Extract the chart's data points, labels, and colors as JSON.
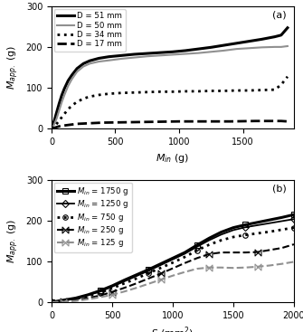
{
  "panel_a": {
    "title": "(a)",
    "xlabel": "$M_{in}$ (g)",
    "ylabel": "$M_{app.}$ (g)",
    "xlim": [
      0,
      1900
    ],
    "ylim": [
      0,
      300
    ],
    "xticks": [
      0,
      500,
      1000,
      1500
    ],
    "yticks": [
      0,
      100,
      200,
      300
    ],
    "series": [
      {
        "label": "D = 51 mm",
        "style": "solid",
        "color": "black",
        "linewidth": 2.2,
        "x": [
          0,
          20,
          40,
          60,
          80,
          100,
          130,
          160,
          200,
          250,
          300,
          370,
          450,
          550,
          650,
          750,
          850,
          950,
          1050,
          1150,
          1250,
          1350,
          1450,
          1550,
          1650,
          1750,
          1800,
          1850
        ],
        "y": [
          0,
          18,
          40,
          62,
          82,
          98,
          118,
          132,
          148,
          160,
          167,
          173,
          177,
          180,
          183,
          185,
          187,
          189,
          192,
          196,
          200,
          205,
          210,
          215,
          220,
          226,
          230,
          248
        ]
      },
      {
        "label": "D = 50 mm",
        "style": "solid",
        "color": "#909090",
        "linewidth": 1.5,
        "x": [
          0,
          20,
          40,
          60,
          80,
          100,
          130,
          160,
          200,
          250,
          300,
          370,
          450,
          550,
          650,
          750,
          850,
          950,
          1050,
          1150,
          1250,
          1350,
          1450,
          1550,
          1650,
          1750,
          1800,
          1850
        ],
        "y": [
          0,
          10,
          25,
          45,
          65,
          82,
          105,
          122,
          140,
          153,
          160,
          165,
          168,
          172,
          175,
          178,
          180,
          182,
          184,
          186,
          189,
          192,
          196,
          198,
          200,
          201,
          201,
          203
        ]
      },
      {
        "label": "D = 34 mm",
        "style": "dotted",
        "color": "black",
        "linewidth": 2.0,
        "x": [
          0,
          20,
          40,
          60,
          80,
          100,
          130,
          160,
          200,
          250,
          300,
          370,
          450,
          550,
          650,
          750,
          850,
          950,
          1050,
          1150,
          1250,
          1350,
          1450,
          1550,
          1650,
          1750,
          1800,
          1850
        ],
        "y": [
          0,
          5,
          12,
          20,
          28,
          36,
          48,
          57,
          66,
          74,
          79,
          83,
          86,
          88,
          89,
          90,
          91,
          91,
          92,
          92,
          93,
          93,
          94,
          94,
          95,
          96,
          108,
          128
        ]
      },
      {
        "label": "D = 17 mm",
        "style": "dashed",
        "color": "black",
        "linewidth": 2.0,
        "x": [
          0,
          20,
          40,
          60,
          100,
          200,
          400,
          600,
          800,
          1000,
          1200,
          1400,
          1600,
          1750,
          1800,
          1850
        ],
        "y": [
          0,
          2,
          4,
          6,
          8,
          12,
          15,
          16,
          17,
          18,
          18,
          18,
          19,
          19,
          19,
          18
        ]
      }
    ]
  },
  "panel_b": {
    "title": "(b)",
    "xlabel": "S (mm$^2$)",
    "ylabel": "$M_{app.}$ (g)",
    "xlim": [
      0,
      2000
    ],
    "ylim": [
      0,
      300
    ],
    "xticks": [
      0,
      500,
      1000,
      1500,
      2000
    ],
    "yticks": [
      0,
      100,
      200,
      300
    ],
    "series": [
      {
        "label": "$M_{in}$ = 1750 g",
        "style": "solid",
        "color": "black",
        "linewidth": 2.2,
        "marker": "s",
        "markersize": 4,
        "x": [
          0,
          100,
          200,
          300,
          400,
          500,
          600,
          700,
          800,
          900,
          1000,
          1100,
          1200,
          1300,
          1400,
          1500,
          1600,
          1700,
          1800,
          1900,
          2000
        ],
        "y": [
          0,
          5,
          10,
          18,
          28,
          40,
          54,
          67,
          80,
          94,
          108,
          122,
          140,
          157,
          172,
          183,
          190,
          196,
          202,
          208,
          215
        ]
      },
      {
        "label": "$M_{in}$ = 1250 g",
        "style": "solid",
        "color": "black",
        "linewidth": 1.3,
        "marker": "D",
        "markersize": 4,
        "x": [
          0,
          100,
          200,
          300,
          400,
          500,
          600,
          700,
          800,
          900,
          1000,
          1100,
          1200,
          1300,
          1400,
          1500,
          1600,
          1700,
          1800,
          1900,
          2000
        ],
        "y": [
          0,
          4,
          9,
          17,
          26,
          38,
          51,
          64,
          77,
          91,
          105,
          119,
          136,
          152,
          166,
          177,
          184,
          189,
          194,
          199,
          204
        ]
      },
      {
        "label": "$M_{in}$ = 750 g",
        "style": "dotted",
        "color": "black",
        "linewidth": 2.0,
        "marker": "o",
        "markersize": 4,
        "x": [
          0,
          100,
          200,
          300,
          400,
          500,
          600,
          700,
          800,
          900,
          1000,
          1100,
          1200,
          1300,
          1400,
          1500,
          1600,
          1700,
          1800,
          1900,
          2000
        ],
        "y": [
          0,
          3,
          8,
          15,
          23,
          34,
          46,
          58,
          71,
          84,
          97,
          111,
          127,
          141,
          152,
          160,
          165,
          169,
          173,
          178,
          183
        ]
      },
      {
        "label": "$M_{in}$ = 250 g",
        "style": "dashed",
        "color": "black",
        "linewidth": 1.5,
        "marker": "x",
        "markersize": 5,
        "markerstyle": "bowtie",
        "x": [
          0,
          100,
          200,
          300,
          400,
          500,
          600,
          700,
          800,
          900,
          1000,
          1100,
          1200,
          1300,
          1400,
          1500,
          1600,
          1700,
          1800,
          1900,
          2000
        ],
        "y": [
          0,
          2,
          5,
          10,
          16,
          25,
          35,
          46,
          58,
          70,
          83,
          96,
          108,
          118,
          122,
          122,
          122,
          123,
          128,
          133,
          142
        ]
      },
      {
        "label": "$M_{in}$ = 125 g",
        "style": "dashed",
        "color": "#909090",
        "linewidth": 1.5,
        "marker": "x",
        "markersize": 5,
        "markerstyle": "bowtie",
        "x": [
          0,
          100,
          200,
          300,
          400,
          500,
          600,
          700,
          800,
          900,
          1000,
          1100,
          1200,
          1300,
          1400,
          1500,
          1600,
          1700,
          1800,
          1900,
          2000
        ],
        "y": [
          0,
          1,
          3,
          7,
          12,
          18,
          26,
          35,
          45,
          55,
          65,
          74,
          82,
          85,
          85,
          84,
          85,
          87,
          90,
          94,
          99
        ]
      }
    ]
  }
}
